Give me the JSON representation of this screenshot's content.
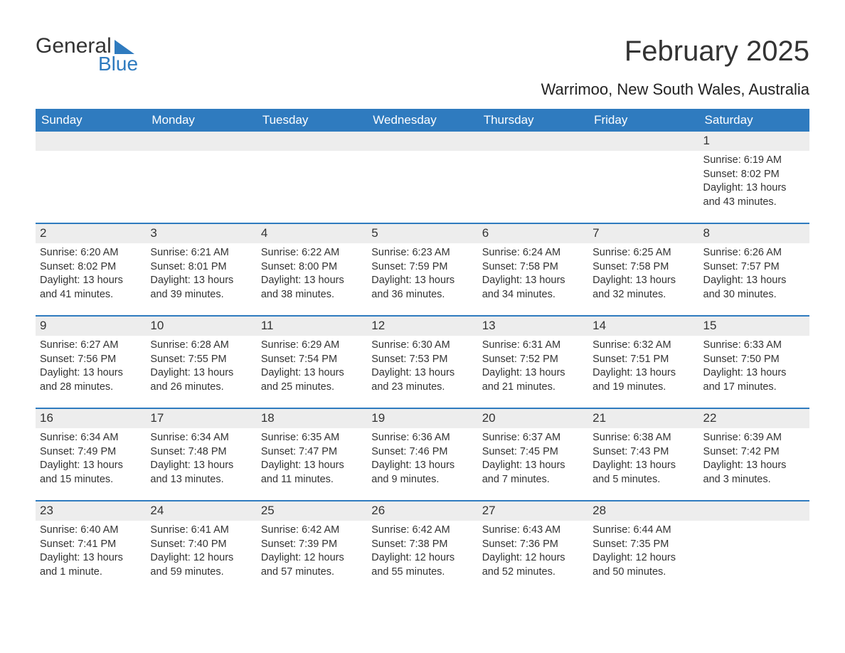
{
  "brand": {
    "word1": "General",
    "word2": "Blue",
    "accent_color": "#2f7bbf"
  },
  "title": "February 2025",
  "location": "Warrimoo, New South Wales, Australia",
  "colors": {
    "header_bg": "#2f7bbf",
    "header_text": "#ffffff",
    "band_bg": "#ededed",
    "text": "#333333",
    "page_bg": "#ffffff"
  },
  "weekdays": [
    "Sunday",
    "Monday",
    "Tuesday",
    "Wednesday",
    "Thursday",
    "Friday",
    "Saturday"
  ],
  "weeks": [
    [
      null,
      null,
      null,
      null,
      null,
      null,
      {
        "n": "1",
        "sr": "Sunrise: 6:19 AM",
        "ss": "Sunset: 8:02 PM",
        "dl": "Daylight: 13 hours and 43 minutes."
      }
    ],
    [
      {
        "n": "2",
        "sr": "Sunrise: 6:20 AM",
        "ss": "Sunset: 8:02 PM",
        "dl": "Daylight: 13 hours and 41 minutes."
      },
      {
        "n": "3",
        "sr": "Sunrise: 6:21 AM",
        "ss": "Sunset: 8:01 PM",
        "dl": "Daylight: 13 hours and 39 minutes."
      },
      {
        "n": "4",
        "sr": "Sunrise: 6:22 AM",
        "ss": "Sunset: 8:00 PM",
        "dl": "Daylight: 13 hours and 38 minutes."
      },
      {
        "n": "5",
        "sr": "Sunrise: 6:23 AM",
        "ss": "Sunset: 7:59 PM",
        "dl": "Daylight: 13 hours and 36 minutes."
      },
      {
        "n": "6",
        "sr": "Sunrise: 6:24 AM",
        "ss": "Sunset: 7:58 PM",
        "dl": "Daylight: 13 hours and 34 minutes."
      },
      {
        "n": "7",
        "sr": "Sunrise: 6:25 AM",
        "ss": "Sunset: 7:58 PM",
        "dl": "Daylight: 13 hours and 32 minutes."
      },
      {
        "n": "8",
        "sr": "Sunrise: 6:26 AM",
        "ss": "Sunset: 7:57 PM",
        "dl": "Daylight: 13 hours and 30 minutes."
      }
    ],
    [
      {
        "n": "9",
        "sr": "Sunrise: 6:27 AM",
        "ss": "Sunset: 7:56 PM",
        "dl": "Daylight: 13 hours and 28 minutes."
      },
      {
        "n": "10",
        "sr": "Sunrise: 6:28 AM",
        "ss": "Sunset: 7:55 PM",
        "dl": "Daylight: 13 hours and 26 minutes."
      },
      {
        "n": "11",
        "sr": "Sunrise: 6:29 AM",
        "ss": "Sunset: 7:54 PM",
        "dl": "Daylight: 13 hours and 25 minutes."
      },
      {
        "n": "12",
        "sr": "Sunrise: 6:30 AM",
        "ss": "Sunset: 7:53 PM",
        "dl": "Daylight: 13 hours and 23 minutes."
      },
      {
        "n": "13",
        "sr": "Sunrise: 6:31 AM",
        "ss": "Sunset: 7:52 PM",
        "dl": "Daylight: 13 hours and 21 minutes."
      },
      {
        "n": "14",
        "sr": "Sunrise: 6:32 AM",
        "ss": "Sunset: 7:51 PM",
        "dl": "Daylight: 13 hours and 19 minutes."
      },
      {
        "n": "15",
        "sr": "Sunrise: 6:33 AM",
        "ss": "Sunset: 7:50 PM",
        "dl": "Daylight: 13 hours and 17 minutes."
      }
    ],
    [
      {
        "n": "16",
        "sr": "Sunrise: 6:34 AM",
        "ss": "Sunset: 7:49 PM",
        "dl": "Daylight: 13 hours and 15 minutes."
      },
      {
        "n": "17",
        "sr": "Sunrise: 6:34 AM",
        "ss": "Sunset: 7:48 PM",
        "dl": "Daylight: 13 hours and 13 minutes."
      },
      {
        "n": "18",
        "sr": "Sunrise: 6:35 AM",
        "ss": "Sunset: 7:47 PM",
        "dl": "Daylight: 13 hours and 11 minutes."
      },
      {
        "n": "19",
        "sr": "Sunrise: 6:36 AM",
        "ss": "Sunset: 7:46 PM",
        "dl": "Daylight: 13 hours and 9 minutes."
      },
      {
        "n": "20",
        "sr": "Sunrise: 6:37 AM",
        "ss": "Sunset: 7:45 PM",
        "dl": "Daylight: 13 hours and 7 minutes."
      },
      {
        "n": "21",
        "sr": "Sunrise: 6:38 AM",
        "ss": "Sunset: 7:43 PM",
        "dl": "Daylight: 13 hours and 5 minutes."
      },
      {
        "n": "22",
        "sr": "Sunrise: 6:39 AM",
        "ss": "Sunset: 7:42 PM",
        "dl": "Daylight: 13 hours and 3 minutes."
      }
    ],
    [
      {
        "n": "23",
        "sr": "Sunrise: 6:40 AM",
        "ss": "Sunset: 7:41 PM",
        "dl": "Daylight: 13 hours and 1 minute."
      },
      {
        "n": "24",
        "sr": "Sunrise: 6:41 AM",
        "ss": "Sunset: 7:40 PM",
        "dl": "Daylight: 12 hours and 59 minutes."
      },
      {
        "n": "25",
        "sr": "Sunrise: 6:42 AM",
        "ss": "Sunset: 7:39 PM",
        "dl": "Daylight: 12 hours and 57 minutes."
      },
      {
        "n": "26",
        "sr": "Sunrise: 6:42 AM",
        "ss": "Sunset: 7:38 PM",
        "dl": "Daylight: 12 hours and 55 minutes."
      },
      {
        "n": "27",
        "sr": "Sunrise: 6:43 AM",
        "ss": "Sunset: 7:36 PM",
        "dl": "Daylight: 12 hours and 52 minutes."
      },
      {
        "n": "28",
        "sr": "Sunrise: 6:44 AM",
        "ss": "Sunset: 7:35 PM",
        "dl": "Daylight: 12 hours and 50 minutes."
      },
      null
    ]
  ]
}
